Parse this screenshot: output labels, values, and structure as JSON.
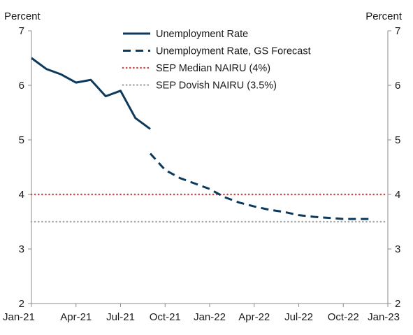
{
  "chart_data": {
    "type": "line",
    "left_axis_label": "Percent",
    "right_axis_label": "Percent",
    "ylim": [
      2,
      7
    ],
    "yticks": [
      2,
      3,
      4,
      5,
      6,
      7
    ],
    "xlim": [
      "2021-01",
      "2023-01"
    ],
    "xticks": [
      "Jan-21",
      "Apr-21",
      "Jul-21",
      "Oct-21",
      "Jan-22",
      "Apr-22",
      "Jul-22",
      "Oct-22",
      "Jan-23"
    ],
    "grid": false,
    "legend_position": "top-center",
    "series": [
      {
        "name": "Unemployment Rate",
        "style": "solid",
        "color": "#0d3a5c",
        "x": [
          "2021-01",
          "2021-02",
          "2021-03",
          "2021-04",
          "2021-05",
          "2021-06",
          "2021-07",
          "2021-08",
          "2021-09"
        ],
        "values": [
          6.5,
          6.3,
          6.2,
          6.05,
          6.1,
          5.8,
          5.9,
          5.4,
          5.2
        ]
      },
      {
        "name": "Unemployment Rate, GS Forecast",
        "style": "dashed",
        "color": "#0d3a5c",
        "x": [
          "2021-09",
          "2021-10",
          "2021-11",
          "2021-12",
          "2022-01",
          "2022-02",
          "2022-03",
          "2022-04",
          "2022-05",
          "2022-06",
          "2022-07",
          "2022-08",
          "2022-09",
          "2022-10",
          "2022-11",
          "2022-12"
        ],
        "values": [
          4.75,
          4.45,
          4.3,
          4.2,
          4.1,
          3.95,
          3.85,
          3.78,
          3.72,
          3.68,
          3.62,
          3.59,
          3.57,
          3.55,
          3.55,
          3.55
        ]
      },
      {
        "name": "SEP Median NAIRU (4%)",
        "style": "dotted",
        "color": "#c0504d",
        "x": [
          "2021-01",
          "2023-01"
        ],
        "values": [
          4.0,
          4.0
        ]
      },
      {
        "name": "SEP Dovish NAIRU (3.5%)",
        "style": "dotted",
        "color": "#a6a6a6",
        "x": [
          "2021-01",
          "2023-01"
        ],
        "values": [
          3.5,
          3.5
        ]
      }
    ]
  }
}
